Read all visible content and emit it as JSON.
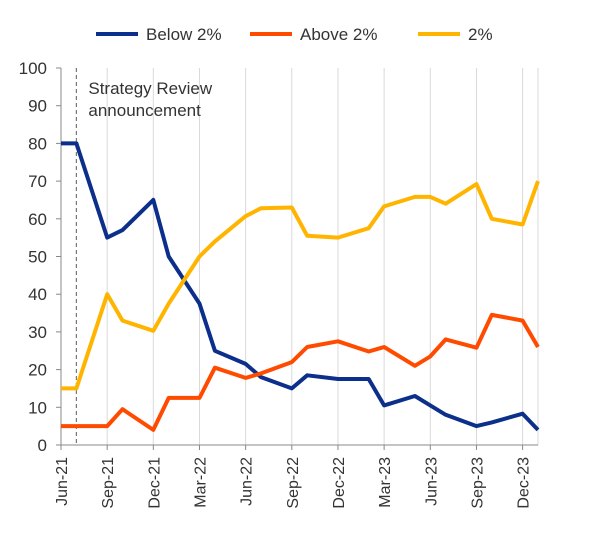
{
  "chart_data": {
    "type": "line",
    "x": [
      "Jun-21",
      "Jul-21",
      "Aug-21",
      "Sep-21",
      "Oct-21",
      "Nov-21",
      "Dec-21",
      "Jan-22",
      "Feb-22",
      "Mar-22",
      "Apr-22",
      "May-22",
      "Jun-22",
      "Jul-22",
      "Aug-22",
      "Sep-22",
      "Oct-22",
      "Nov-22",
      "Dec-22",
      "Jan-23",
      "Feb-23",
      "Mar-23",
      "Apr-23",
      "May-23",
      "Jun-23",
      "Jul-23",
      "Aug-23",
      "Sep-23",
      "Oct-23",
      "Nov-23",
      "Dec-23",
      "Jan-24"
    ],
    "xticks": [
      "Jun-21",
      "Sep-21",
      "Dec-21",
      "Mar-22",
      "Jun-22",
      "Sep-22",
      "Dec-22",
      "Mar-23",
      "Jun-23",
      "Sep-23",
      "Dec-23"
    ],
    "ylim": [
      0,
      100
    ],
    "yticks": [
      0,
      10,
      20,
      30,
      40,
      50,
      60,
      70,
      80,
      90,
      100
    ],
    "legend_position": "top",
    "grid": "vertical",
    "series": [
      {
        "name": "Below 2%",
        "color": "#0b2f8a",
        "points": [
          [
            "Jun-21",
            80
          ],
          [
            "Jul-21",
            80
          ],
          [
            "Sep-21",
            55
          ],
          [
            "Oct-21",
            57
          ],
          [
            "Dec-21",
            65
          ],
          [
            "Jan-22",
            50
          ],
          [
            "Mar-22",
            37.5
          ],
          [
            "Apr-22",
            25
          ],
          [
            "Jun-22",
            21.5
          ],
          [
            "Jul-22",
            18
          ],
          [
            "Sep-22",
            15
          ],
          [
            "Oct-22",
            18.5
          ],
          [
            "Dec-22",
            17.5
          ],
          [
            "Feb-23",
            17.5
          ],
          [
            "Mar-23",
            10.5
          ],
          [
            "May-23",
            13
          ],
          [
            "Jun-23",
            10.5
          ],
          [
            "Jul-23",
            8
          ],
          [
            "Sep-23",
            5
          ],
          [
            "Oct-23",
            6
          ],
          [
            "Dec-23",
            8.3
          ],
          [
            "Jan-24",
            4
          ]
        ]
      },
      {
        "name": "Above 2%",
        "color": "#ff4b00",
        "points": [
          [
            "Jun-21",
            5
          ],
          [
            "Jul-21",
            5
          ],
          [
            "Sep-21",
            5
          ],
          [
            "Oct-21",
            9.5
          ],
          [
            "Dec-21",
            4
          ],
          [
            "Jan-22",
            12.5
          ],
          [
            "Mar-22",
            12.5
          ],
          [
            "Apr-22",
            20.5
          ],
          [
            "Jun-22",
            17.8
          ],
          [
            "Jul-22",
            19
          ],
          [
            "Sep-22",
            22
          ],
          [
            "Oct-22",
            26
          ],
          [
            "Dec-22",
            27.5
          ],
          [
            "Feb-23",
            24.8
          ],
          [
            "Mar-23",
            26
          ],
          [
            "May-23",
            21
          ],
          [
            "Jun-23",
            23.5
          ],
          [
            "Jul-23",
            28
          ],
          [
            "Sep-23",
            25.8
          ],
          [
            "Oct-23",
            34.5
          ],
          [
            "Dec-23",
            33
          ],
          [
            "Jan-24",
            26
          ]
        ]
      },
      {
        "name": "2%",
        "color": "#ffb400",
        "points": [
          [
            "Jun-21",
            15
          ],
          [
            "Jul-21",
            15
          ],
          [
            "Sep-21",
            40
          ],
          [
            "Oct-21",
            33
          ],
          [
            "Dec-21",
            30.3
          ],
          [
            "Jan-22",
            37.5
          ],
          [
            "Mar-22",
            50
          ],
          [
            "Apr-22",
            54
          ],
          [
            "Jun-22",
            60.7
          ],
          [
            "Jul-22",
            62.8
          ],
          [
            "Sep-22",
            63
          ],
          [
            "Oct-22",
            55.5
          ],
          [
            "Dec-22",
            55
          ],
          [
            "Feb-23",
            57.5
          ],
          [
            "Mar-23",
            63.3
          ],
          [
            "May-23",
            65.8
          ],
          [
            "Jun-23",
            65.8
          ],
          [
            "Jul-23",
            64
          ],
          [
            "Sep-23",
            69.2
          ],
          [
            "Oct-23",
            60
          ],
          [
            "Dec-23",
            58.5
          ],
          [
            "Jan-24",
            70
          ]
        ]
      }
    ],
    "annotations": [
      {
        "text_lines": [
          "Strategy Review",
          "announcement"
        ],
        "x": "Jul-21",
        "style": "dashed-vertical-line"
      }
    ]
  }
}
